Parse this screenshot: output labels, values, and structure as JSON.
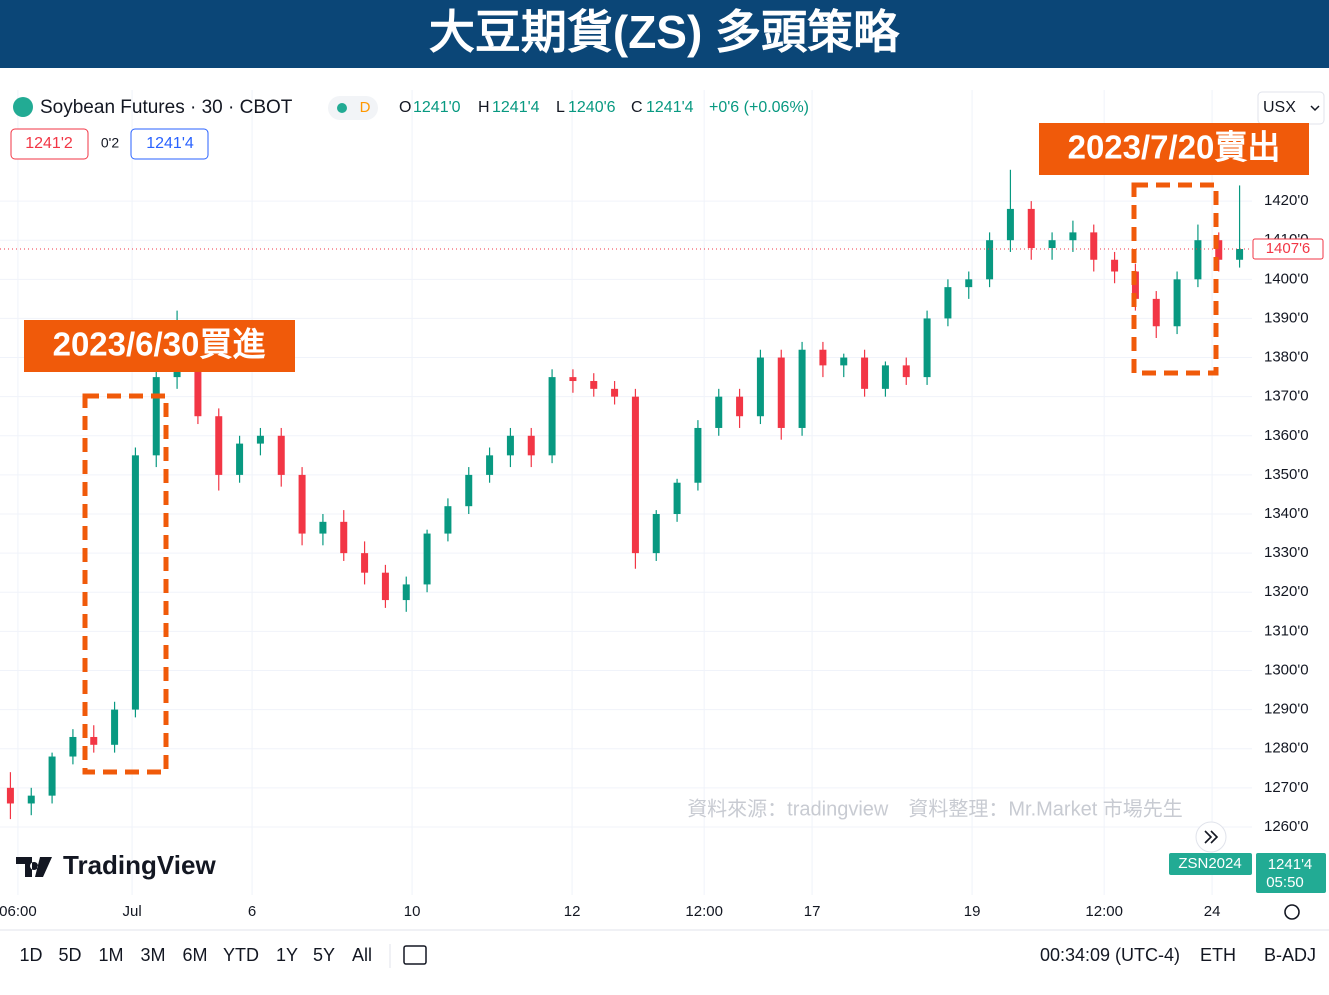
{
  "header": {
    "title": "大豆期貨(ZS) 多頭策略"
  },
  "toolbar": {
    "symbol": "Soybean Futures · 30 · CBOT",
    "interval_badge": "D",
    "ohlc": [
      {
        "key": "O",
        "value": "1241'0"
      },
      {
        "key": "H",
        "value": "1241'4"
      },
      {
        "key": "L",
        "value": "1240'6"
      },
      {
        "key": "C",
        "value": "1241'4"
      }
    ],
    "change": "+0'6 (+0.06%)",
    "bid": "1241'2",
    "spread": "0'2",
    "ask": "1241'4",
    "currency": "USX"
  },
  "chart_data": {
    "type": "candlestick",
    "open": [
      1270,
      1266,
      1268,
      1278,
      1283,
      1281,
      1290,
      1355,
      1375,
      1380,
      1365,
      1350,
      1358,
      1360,
      1350,
      1335,
      1338,
      1330,
      1325,
      1318,
      1322,
      1335,
      1342,
      1350,
      1355,
      1360,
      1355,
      1375,
      1374,
      1372,
      1370,
      1330,
      1340,
      1348,
      1362,
      1370,
      1365,
      1380,
      1362,
      1382,
      1378,
      1380,
      1372,
      1378,
      1375,
      1390,
      1398,
      1400,
      1410,
      1418,
      1408,
      1410,
      1412,
      1405,
      1402,
      1395,
      1388,
      1400,
      1410,
      1405
    ],
    "high": [
      1274,
      1270,
      1279,
      1285,
      1286,
      1292,
      1357,
      1377,
      1392,
      1382,
      1367,
      1360,
      1362,
      1362,
      1352,
      1340,
      1341,
      1333,
      1327,
      1324,
      1336,
      1344,
      1352,
      1357,
      1362,
      1362,
      1377,
      1377,
      1376,
      1374,
      1372,
      1341,
      1349,
      1364,
      1372,
      1372,
      1382,
      1382,
      1384,
      1384,
      1381,
      1382,
      1379,
      1380,
      1392,
      1400,
      1402,
      1412,
      1428,
      1420,
      1412,
      1415,
      1414,
      1407,
      1404,
      1397,
      1402,
      1414,
      1412,
      1424
    ],
    "low": [
      1262,
      1263,
      1266,
      1276,
      1279,
      1279,
      1288,
      1352,
      1372,
      1363,
      1346,
      1348,
      1355,
      1347,
      1332,
      1332,
      1328,
      1322,
      1316,
      1315,
      1320,
      1333,
      1340,
      1348,
      1352,
      1352,
      1353,
      1371,
      1370,
      1368,
      1326,
      1328,
      1338,
      1346,
      1360,
      1362,
      1363,
      1359,
      1360,
      1375,
      1375,
      1370,
      1370,
      1373,
      1373,
      1388,
      1395,
      1398,
      1407,
      1405,
      1405,
      1407,
      1402,
      1399,
      1392,
      1385,
      1386,
      1398,
      1402,
      1403
    ],
    "close": [
      1266,
      1268,
      1278,
      1283,
      1281,
      1290,
      1355,
      1375,
      1380,
      1365,
      1350,
      1358,
      1360,
      1350,
      1335,
      1338,
      1330,
      1325,
      1318,
      1322,
      1335,
      1342,
      1350,
      1355,
      1360,
      1355,
      1375,
      1374,
      1372,
      1370,
      1330,
      1340,
      1348,
      1362,
      1370,
      1365,
      1380,
      1362,
      1382,
      1378,
      1380,
      1372,
      1378,
      1375,
      1390,
      1398,
      1400,
      1410,
      1418,
      1408,
      1410,
      1412,
      1405,
      1402,
      1395,
      1388,
      1400,
      1410,
      1405,
      1407.75
    ],
    "up_color": "#089981",
    "down_color": "#f23645",
    "xlim": [
      0,
      60
    ],
    "xticks": [
      {
        "value": 0.86,
        "label": "06:00"
      },
      {
        "value": 6.34,
        "label": "Jul"
      },
      {
        "value": 12.1,
        "label": "6"
      },
      {
        "value": 19.78,
        "label": "10"
      },
      {
        "value": 27.46,
        "label": "12"
      },
      {
        "value": 33.8,
        "label": "12:00"
      },
      {
        "value": 38.98,
        "label": "17"
      },
      {
        "value": 46.66,
        "label": "19"
      },
      {
        "value": 53,
        "label": "12:00"
      },
      {
        "value": 58.18,
        "label": "24"
      }
    ],
    "ylim": [
      1242.6,
      1448.4
    ],
    "yticks": [
      {
        "value": 1260,
        "label": "1260'0"
      },
      {
        "value": 1270,
        "label": "1270'0"
      },
      {
        "value": 1280,
        "label": "1280'0"
      },
      {
        "value": 1290,
        "label": "1290'0"
      },
      {
        "value": 1300,
        "label": "1300'0"
      },
      {
        "value": 1310,
        "label": "1310'0"
      },
      {
        "value": 1320,
        "label": "1320'0"
      },
      {
        "value": 1330,
        "label": "1330'0"
      },
      {
        "value": 1340,
        "label": "1340'0"
      },
      {
        "value": 1350,
        "label": "1350'0"
      },
      {
        "value": 1360,
        "label": "1360'0"
      },
      {
        "value": 1370,
        "label": "1370'0"
      },
      {
        "value": 1380,
        "label": "1380'0"
      },
      {
        "value": 1390,
        "label": "1390'0"
      },
      {
        "value": 1400,
        "label": "1400'0"
      },
      {
        "value": 1410,
        "label": "1410'0"
      },
      {
        "value": 1420,
        "label": "1420'0"
      }
    ],
    "grid": true,
    "last_price": {
      "value": 1407.75,
      "label": "1407'6"
    },
    "annotations": [
      "2023/6/30買進",
      "2023/7/20賣出"
    ],
    "watermark": "資料來源：tradingview　資料整理：Mr.Market 市場先生"
  },
  "footer": {
    "logo": "TradingView",
    "contract": "ZSN2024",
    "contract_price": "1241'4",
    "countdown": "05:50",
    "ranges": [
      "1D",
      "5D",
      "1M",
      "3M",
      "6M",
      "YTD",
      "1Y",
      "5Y",
      "All"
    ],
    "clock": "00:34:09 (UTC-4)",
    "session": "ETH",
    "adjustment": "B-ADJ"
  }
}
